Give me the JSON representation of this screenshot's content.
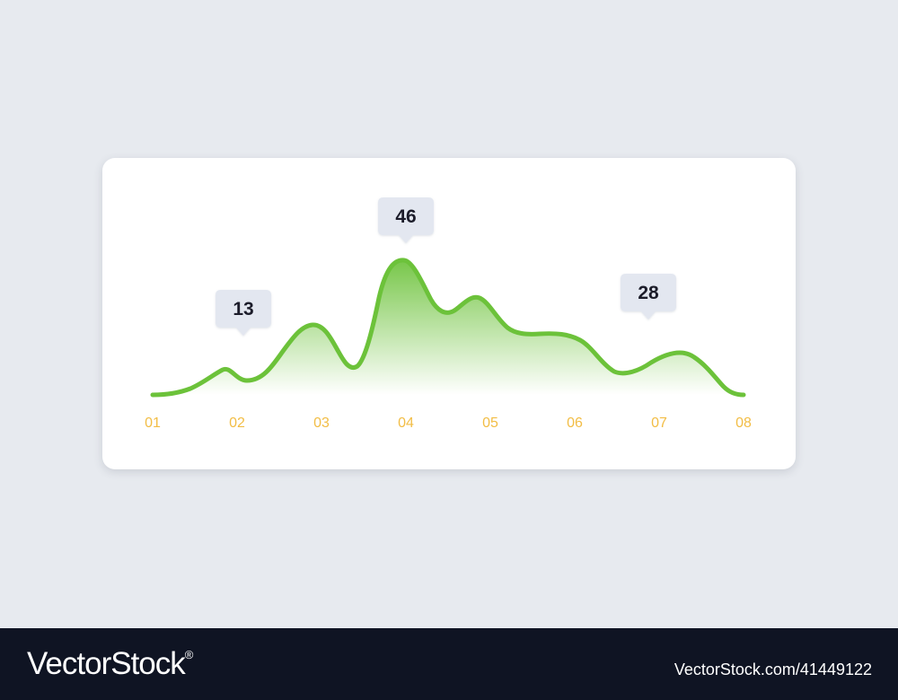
{
  "chart_data": {
    "type": "area",
    "x": [
      "01",
      "02",
      "03",
      "04",
      "05",
      "06",
      "07",
      "08"
    ],
    "annotations": [
      {
        "x": "02",
        "label": "13"
      },
      {
        "x": "04",
        "label": "46"
      },
      {
        "x": "07",
        "label": "28"
      }
    ],
    "grid": false,
    "colors": {
      "line": "#6cc23a",
      "fill_top": "#6cc23a",
      "tick_labels": "#f2bd45",
      "callout_bg": "#e3e7f0"
    }
  },
  "footer": {
    "brand": "VectorStock",
    "trademark": "®",
    "image_id": "VectorStock.com/41449122"
  }
}
